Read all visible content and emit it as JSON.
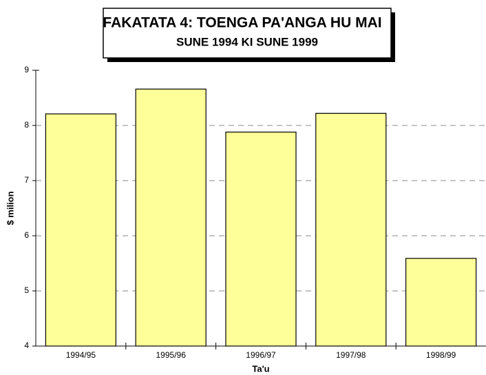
{
  "chart_data": {
    "type": "bar",
    "title": "FAKATATA 4: TOENGA PA'ANGA HU MAI",
    "subtitle": "SUNE 1994 KI SUNE 1999",
    "y_label": "$ milion",
    "x_label": "Ta'u",
    "categories": [
      "1994/95",
      "1995/96",
      "1996/97",
      "1997/98",
      "1998/99"
    ],
    "values": [
      8.21,
      8.66,
      7.88,
      8.22,
      5.59
    ],
    "color": "#ffff99",
    "ylim": [
      4,
      9
    ],
    "yticks": [
      4,
      5,
      6,
      7,
      8,
      9
    ],
    "grid": true
  }
}
